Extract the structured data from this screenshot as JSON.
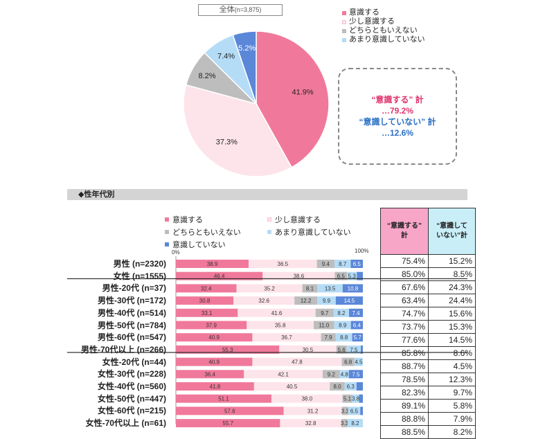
{
  "pie": {
    "title": "全体",
    "title_n": "(n=3,875)",
    "legend": [
      "意識する",
      "少し意識する",
      "どちらともいえない",
      "あまり意識していない"
    ],
    "callout": {
      "line1": "“意識する” 計",
      "line2": "…79.2%",
      "line3": "“意識していない” 計",
      "line4": "…12.6%"
    }
  },
  "section_title": "◆性年代別",
  "bar_legend": [
    "意識する",
    "少し意識する",
    "どちらともいえない",
    "あまり意識していない",
    "意識していない"
  ],
  "axis": {
    "left": "0%",
    "right": "100%"
  },
  "table_headers": {
    "col1": "“意識する”\n計",
    "col2": "“意識して\nいない”計"
  },
  "colors": {
    "c1": "#f0799b",
    "c2": "#fde4ea",
    "c3": "#bdbdbd",
    "c4": "#b5dcf6",
    "c5": "#5b87d8"
  },
  "chart_data": [
    {
      "type": "pie",
      "title": "全体(n=3,875)",
      "categories": [
        "意識する",
        "少し意識する",
        "どちらともいえない",
        "あまり意識していない",
        "意識していない"
      ],
      "values": [
        41.9,
        37.3,
        8.2,
        7.4,
        5.2
      ],
      "labels": [
        "41.9%",
        "37.3%",
        "8.2%",
        "7.4%",
        "5.2%"
      ]
    },
    {
      "type": "bar",
      "orientation": "horizontal-stacked-100",
      "categories": [
        "男性 (n=2320)",
        "女性 (n=1555)",
        "男性-20代 (n=37)",
        "男性-30代 (n=172)",
        "男性-40代 (n=514)",
        "男性-50代 (n=784)",
        "男性-60代 (n=547)",
        "男性-70代以上 (n=266)",
        "女性-20代 (n=44)",
        "女性-30代 (n=228)",
        "女性-40代 (n=560)",
        "女性-50代 (n=447)",
        "女性-60代 (n=215)",
        "女性-70代以上 (n=61)"
      ],
      "series": [
        {
          "name": "意識する",
          "values": [
            38.9,
            46.4,
            32.4,
            30.8,
            33.1,
            37.9,
            40.9,
            55.3,
            40.9,
            36.4,
            41.8,
            51.1,
            57.6,
            55.7
          ]
        },
        {
          "name": "少し意識する",
          "values": [
            36.5,
            38.6,
            35.2,
            32.6,
            41.6,
            35.8,
            36.7,
            30.5,
            47.8,
            42.1,
            40.5,
            38.0,
            31.2,
            32.8
          ]
        },
        {
          "name": "どちらともいえない",
          "values": [
            9.4,
            6.5,
            8.1,
            12.2,
            9.7,
            11.0,
            7.9,
            5.6,
            6.8,
            9.2,
            8.0,
            5.1,
            3.3,
            3.3
          ]
        },
        {
          "name": "あまり意識していない",
          "values": [
            8.7,
            5.3,
            13.5,
            9.9,
            8.2,
            8.9,
            8.8,
            7.5,
            4.5,
            4.8,
            6.3,
            3.8,
            6.5,
            8.2
          ]
        },
        {
          "name": "意識していない",
          "values": [
            6.5,
            3.2,
            10.8,
            14.5,
            7.4,
            6.4,
            5.7,
            1.1,
            0.0,
            7.5,
            3.4,
            2.0,
            1.4,
            0.0
          ]
        }
      ],
      "bar_labels": [
        [
          "38.9",
          "36.5",
          "9.4",
          "8.7",
          "6.5"
        ],
        [
          "46.4",
          "38.6",
          "6.5",
          "5.3",
          ""
        ],
        [
          "32.4",
          "35.2",
          "8.1",
          "13.5",
          "10.8"
        ],
        [
          "30.8",
          "32.6",
          "12.2",
          "9.9",
          "14.5"
        ],
        [
          "33.1",
          "41.6",
          "9.7",
          "8.2",
          "7.4"
        ],
        [
          "37.9",
          "35.8",
          "11.0",
          "8.9",
          "6.4"
        ],
        [
          "40.9",
          "36.7",
          "7.9",
          "8.8",
          "5.7"
        ],
        [
          "55.3",
          "30.5",
          "5.6",
          "7.5",
          ""
        ],
        [
          "40.9",
          "47.8",
          "6.8",
          "4.5",
          ""
        ],
        [
          "36.4",
          "42.1",
          "9.2",
          "4.8",
          "7.5"
        ],
        [
          "41.8",
          "40.5",
          "8.0",
          "6.3",
          ""
        ],
        [
          "51.1",
          "38.0",
          "5.1",
          "3.8",
          ""
        ],
        [
          "57.6",
          "31.2",
          "3.3",
          "6.5",
          ""
        ],
        [
          "55.7",
          "32.8",
          "3.3",
          "8.2",
          ""
        ]
      ],
      "xlim": [
        0,
        100
      ]
    },
    {
      "type": "table",
      "columns": [
        "“意識する”計",
        "“意識していない”計"
      ],
      "rows": [
        [
          "75.4%",
          "15.2%"
        ],
        [
          "85.0%",
          "8.5%"
        ],
        [
          "67.6%",
          "24.3%"
        ],
        [
          "63.4%",
          "24.4%"
        ],
        [
          "74.7%",
          "15.6%"
        ],
        [
          "73.7%",
          "15.3%"
        ],
        [
          "77.6%",
          "14.5%"
        ],
        [
          "85.8%",
          "8.6%"
        ],
        [
          "88.7%",
          "4.5%"
        ],
        [
          "78.5%",
          "12.3%"
        ],
        [
          "82.3%",
          "9.7%"
        ],
        [
          "89.1%",
          "5.8%"
        ],
        [
          "88.8%",
          "7.9%"
        ],
        [
          "88.5%",
          "8.2%"
        ]
      ]
    }
  ]
}
